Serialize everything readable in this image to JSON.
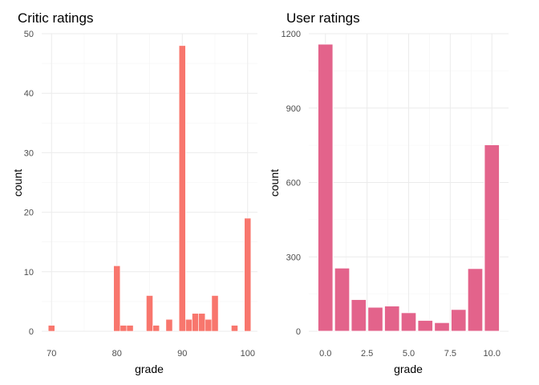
{
  "chart_data": [
    {
      "type": "bar",
      "title": "Critic ratings",
      "xlabel": "grade",
      "ylabel": "count",
      "xlim": [
        68.5,
        101.5
      ],
      "ylim": [
        0,
        50
      ],
      "x_ticks": [
        70,
        80,
        90,
        100
      ],
      "x_tick_labels": [
        "70",
        "80",
        "90",
        "100"
      ],
      "y_ticks": [
        0,
        10,
        20,
        30,
        40,
        50
      ],
      "y_tick_labels": [
        "0",
        "10",
        "20",
        "30",
        "40",
        "50"
      ],
      "bar_width": 1,
      "color": "#F8766D",
      "grid": true,
      "x": [
        70,
        80,
        81,
        82,
        85,
        86,
        88,
        90,
        91,
        92,
        93,
        94,
        95,
        98,
        100
      ],
      "values": [
        1,
        11,
        1,
        1,
        6,
        1,
        2,
        48,
        2,
        3,
        3,
        2,
        6,
        1,
        19
      ]
    },
    {
      "type": "bar",
      "title": "User ratings",
      "xlabel": "grade",
      "ylabel": "count",
      "xlim": [
        -1,
        11
      ],
      "ylim": [
        0,
        1200
      ],
      "x_ticks": [
        0,
        2.5,
        5,
        7.5,
        10
      ],
      "x_tick_labels": [
        "0.0",
        "2.5",
        "5.0",
        "7.5",
        "10.0"
      ],
      "y_ticks": [
        0,
        300,
        600,
        900,
        1200
      ],
      "y_tick_labels": [
        "0",
        "300",
        "600",
        "900",
        "1200"
      ],
      "bar_width": 0.9,
      "color": "#E3638B",
      "grid": true,
      "x": [
        0,
        1,
        2,
        3,
        4,
        5,
        6,
        7,
        8,
        9,
        10
      ],
      "values": [
        1158,
        255,
        128,
        97,
        102,
        75,
        44,
        35,
        88,
        253,
        752
      ]
    }
  ]
}
